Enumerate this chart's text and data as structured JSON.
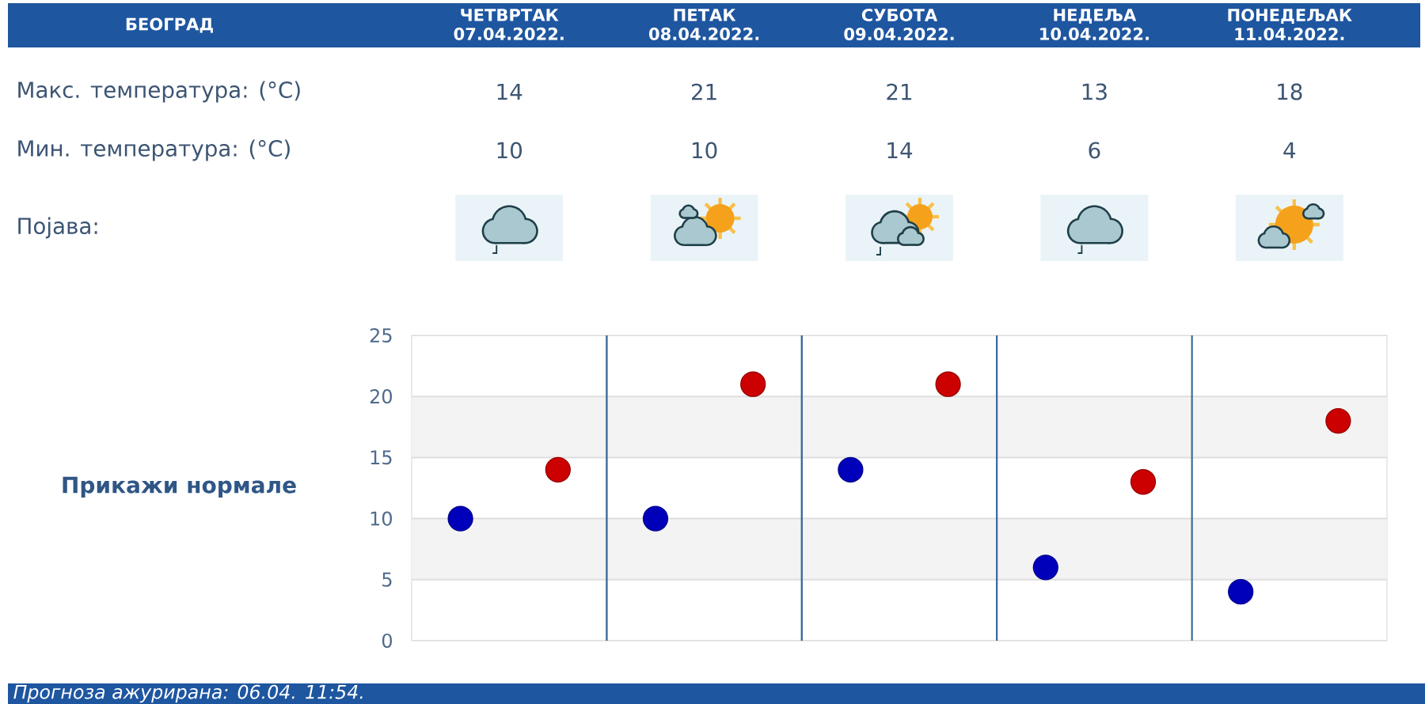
{
  "chart_data": {
    "type": "scatter",
    "title": "БЕОГРАД",
    "categories": [
      null,
      null,
      null,
      null,
      null
    ],
    "series": [
      {
        "color": "#cc0000",
        "values": [
          14,
          21,
          21,
          13,
          18
        ]
      },
      {
        "color": "#0000bb",
        "values": [
          10,
          10,
          14,
          6,
          4
        ]
      }
    ],
    "ylim": [
      0,
      25
    ],
    "yticks": [
      0,
      5,
      10,
      15,
      20,
      25
    ],
    "grid": "y",
    "marker": "circle",
    "data_labels": true,
    "annotations": [
      "ЧЕТВРТАК 07.04.2022.",
      "ПЕТАК 08.04.2022.",
      "СУБОТА 09.04.2022.",
      "НЕДЕЉА 10.04.2022.",
      "ПОНЕДЕЉАК 11.04.2022.",
      "Макс. температура: (°C)",
      "Мин. температура: (°C)",
      "Појава:",
      "Прикажи нормале",
      "Прогноза ажурирана: 06.04. 11:54."
    ]
  }
}
